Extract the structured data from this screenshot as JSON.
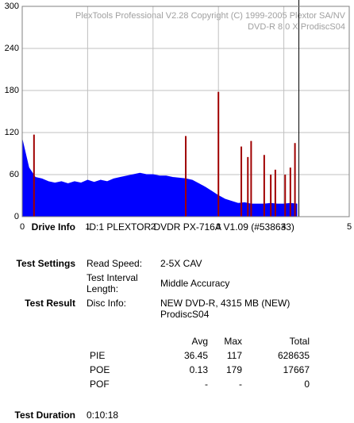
{
  "chart_data": {
    "type": "area",
    "watermark": [
      "PlexTools Professional V2.28 Copyright (C) 1999-2005 Plextor SA/NV",
      "DVD-R   8.0 X   ProdiscS04"
    ],
    "xlim": [
      0,
      5
    ],
    "xticks": [
      0,
      1,
      2,
      3,
      4,
      5
    ],
    "ylim": [
      0,
      300
    ],
    "yticks": [
      0,
      60,
      120,
      180,
      240,
      300
    ],
    "grid": true,
    "end_marker": 4.23,
    "end_marker_color": "#000000",
    "series": [
      {
        "kind": "area",
        "color": "#0000ff",
        "x": [
          0,
          0.1,
          0.2,
          0.3,
          0.4,
          0.5,
          0.6,
          0.7,
          0.8,
          0.9,
          1.0,
          1.1,
          1.2,
          1.3,
          1.4,
          1.5,
          1.6,
          1.7,
          1.8,
          1.9,
          2.0,
          2.1,
          2.2,
          2.3,
          2.4,
          2.5,
          2.6,
          2.7,
          2.8,
          2.9,
          3.0,
          3.1,
          3.2,
          3.3,
          3.4,
          3.5,
          3.6,
          3.7,
          3.8,
          3.9,
          4.0,
          4.1,
          4.2
        ],
        "values": [
          110,
          70,
          56,
          54,
          50,
          48,
          50,
          47,
          50,
          48,
          52,
          49,
          52,
          50,
          54,
          56,
          58,
          60,
          62,
          60,
          60,
          58,
          58,
          56,
          55,
          54,
          52,
          47,
          42,
          36,
          30,
          25,
          22,
          19,
          20,
          18,
          18,
          18,
          19,
          18,
          18,
          19,
          18
        ]
      },
      {
        "kind": "spikes",
        "color": "#a00000",
        "x": [
          0.18,
          2.5,
          3.0,
          3.35,
          3.45,
          3.5,
          3.7,
          3.8,
          3.87,
          4.02,
          4.1,
          4.17
        ],
        "values": [
          117,
          115,
          178,
          100,
          85,
          108,
          88,
          60,
          67,
          60,
          70,
          105
        ]
      }
    ]
  },
  "info": {
    "drive_info": {
      "label": "Drive Info",
      "value": "ID:1 PLEXTOR DVDR PX-716A V1.09 (#538633)"
    },
    "test_settings": {
      "label": "Test Settings",
      "rows": [
        [
          "Read Speed:",
          "2-5X CAV"
        ],
        [
          "Test Interval Length:",
          "Middle Accuracy"
        ]
      ]
    },
    "test_result": {
      "label": "Test Result",
      "rows": [
        [
          "Disc Info:",
          "NEW DVD-R, 4315 MB (NEW) ProdiscS04"
        ]
      ]
    },
    "stats": {
      "header": [
        "Avg",
        "Max",
        "Total"
      ],
      "rows": [
        [
          "PIE",
          36.45,
          117,
          628635
        ],
        [
          "POE",
          0.13,
          179,
          17667
        ],
        [
          "POF",
          "-",
          "-",
          0
        ]
      ]
    },
    "duration": {
      "label": "Test Duration",
      "value": "0:10:18"
    }
  }
}
